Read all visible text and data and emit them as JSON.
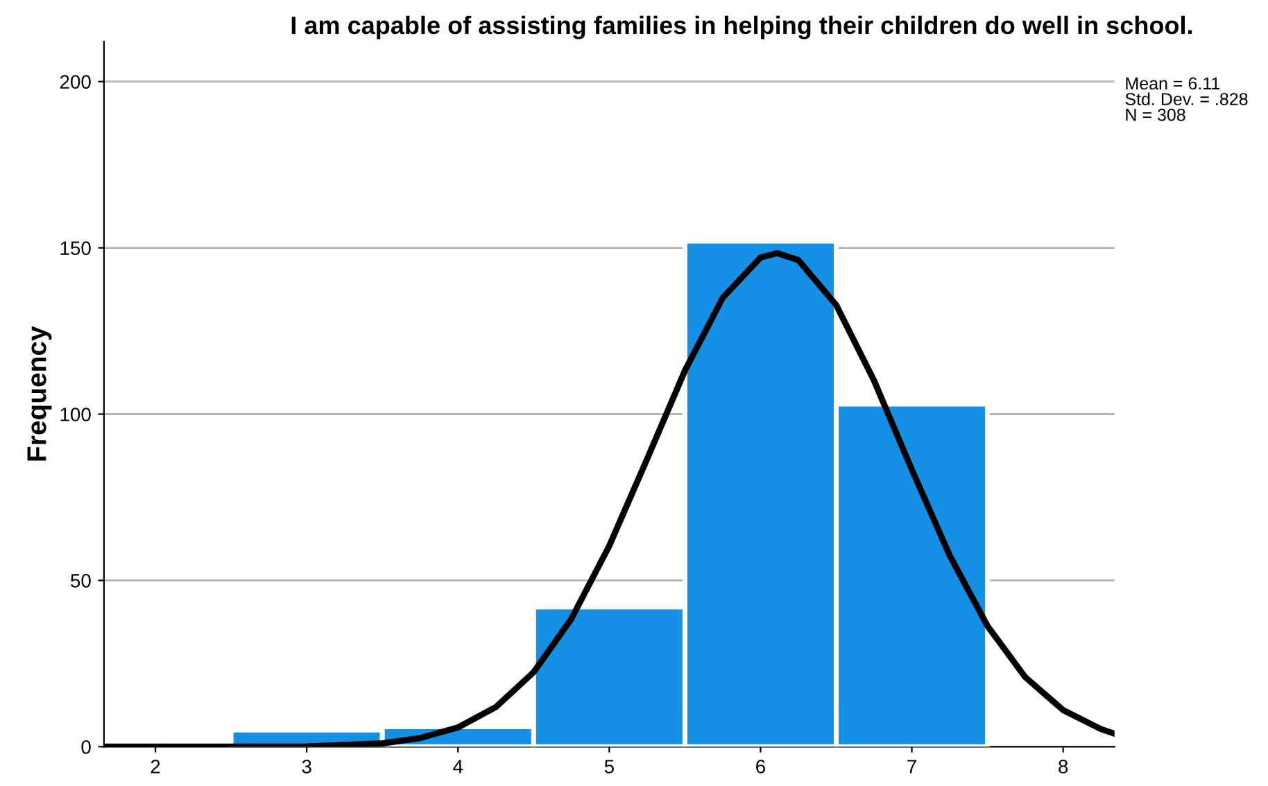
{
  "chart_data": {
    "type": "histogram",
    "title": "I am capable of assisting families in helping their children do well in school.",
    "ylabel": "Frequency",
    "bins": [
      2.5,
      3.5,
      4.5,
      5.5,
      6.5,
      7.5
    ],
    "series": [
      {
        "type": "histogram",
        "color": "#1490e4",
        "values": [
          5,
          6,
          42,
          152,
          103
        ]
      },
      {
        "type": "line",
        "color": "#000000",
        "x": [
          1.66,
          2,
          3,
          3.5,
          3.75,
          4,
          4.25,
          4.5,
          4.75,
          5,
          5.25,
          5.5,
          5.75,
          6,
          6.11,
          6.25,
          6.5,
          6.75,
          7,
          7.25,
          7.5,
          7.75,
          8,
          8.25,
          8.34
        ],
        "values": [
          0,
          0,
          0.1,
          1.0,
          2.6,
          5.8,
          11.9,
          22.4,
          38.5,
          60.4,
          86.5,
          113.1,
          135.0,
          147.1,
          148.4,
          146.3,
          132.8,
          110.1,
          83.3,
          57.5,
          36.3,
          20.9,
          11.0,
          5.3,
          3.9
        ]
      }
    ],
    "xlim": [
      1.66,
      8.34
    ],
    "xticks": [
      2,
      3,
      4,
      5,
      6,
      7,
      8
    ],
    "ylim": [
      0,
      212
    ],
    "yticks": [
      0,
      50,
      100,
      150,
      200
    ],
    "grid": "y",
    "annotations": [
      "Mean = 6.11",
      "Std. Dev. = .828",
      "N = 308"
    ]
  }
}
